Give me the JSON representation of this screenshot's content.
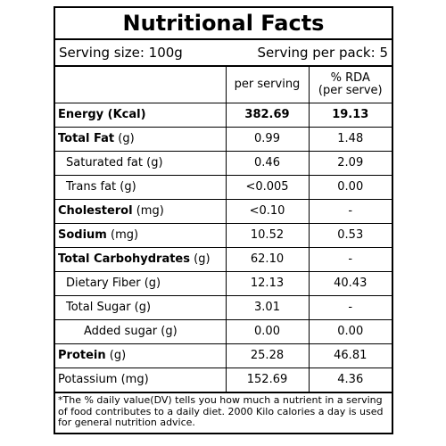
{
  "title": "Nutritional Facts",
  "serving_size": "Serving size: 100g",
  "serving_per_pack": "Serving per pack: 5",
  "columns": {
    "per_serving": "per serving",
    "rda_line1": "% RDA",
    "rda_line2": "(per serve)"
  },
  "rows": [
    {
      "name": "Energy (Kcal)",
      "unit": "",
      "per_serving": "382.69",
      "rda": "19.13"
    },
    {
      "name": "Total Fat",
      "unit": " (g)",
      "per_serving": "0.99",
      "rda": "1.48"
    },
    {
      "name": "Saturated fat (g)",
      "unit": "",
      "per_serving": "0.46",
      "rda": "2.09"
    },
    {
      "name": "Trans fat (g)",
      "unit": "",
      "per_serving": "<0.005",
      "rda": "0.00"
    },
    {
      "name": "Cholesterol",
      "unit": " (mg)",
      "per_serving": "<0.10",
      "rda": "-"
    },
    {
      "name": "Sodium",
      "unit": " (mg)",
      "per_serving": "10.52",
      "rda": "0.53"
    },
    {
      "name": "Total Carbohydrates",
      "unit": " (g)",
      "per_serving": "62.10",
      "rda": "-"
    },
    {
      "name": "Dietary Fiber (g)",
      "unit": "",
      "per_serving": "12.13",
      "rda": "40.43"
    },
    {
      "name": "Total Sugar (g)",
      "unit": "",
      "per_serving": "3.01",
      "rda": "-"
    },
    {
      "name": "Added sugar (g)",
      "unit": "",
      "per_serving": "0.00",
      "rda": "0.00"
    },
    {
      "name": "Protein",
      "unit": " (g)",
      "per_serving": "25.28",
      "rda": "46.81"
    },
    {
      "name": "Potassium (mg)",
      "unit": "",
      "per_serving": "152.69",
      "rda": "4.36"
    }
  ],
  "footnote": "*The % daily value(DV) tells you how much a nutrient in a serving of food contributes to a daily diet. 2000 Kilo calories a day is used for general nutrition advice."
}
